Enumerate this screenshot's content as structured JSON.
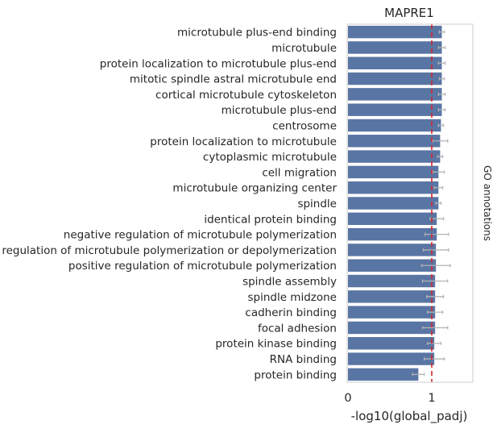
{
  "chart_data": {
    "type": "bar",
    "orientation": "horizontal",
    "title": "MAPRE1",
    "xlabel": "-log10(global_padj)",
    "ylabel": "",
    "right_label": "GO annotations",
    "xlim": [
      0,
      1.5
    ],
    "xticks": [
      0,
      1
    ],
    "reference_line": 1,
    "grid": false,
    "categories": [
      "microtubule plus-end binding",
      "microtubule",
      "protein localization to microtubule plus-end",
      "mitotic spindle astral microtubule end",
      "cortical microtubule cytoskeleton",
      "microtubule plus-end",
      "centrosome",
      "protein localization to microtubule",
      "cytoplasmic microtubule",
      "cell migration",
      "microtubule organizing center",
      "spindle",
      "identical protein binding",
      "negative regulation of microtubule polymerization",
      "regulation of microtubule polymerization or depolymerization",
      "positive regulation of microtubule polymerization",
      "spindle assembly",
      "spindle midzone",
      "cadherin binding",
      "focal adhesion",
      "protein kinase binding",
      "RNA binding",
      "protein binding"
    ],
    "values": [
      1.12,
      1.12,
      1.12,
      1.12,
      1.12,
      1.12,
      1.11,
      1.1,
      1.1,
      1.08,
      1.08,
      1.08,
      1.06,
      1.06,
      1.05,
      1.05,
      1.04,
      1.04,
      1.04,
      1.04,
      1.03,
      1.03,
      0.84
    ],
    "errors": [
      0.03,
      0.04,
      0.04,
      0.03,
      0.04,
      0.04,
      0.03,
      0.09,
      0.03,
      0.07,
      0.05,
      0.03,
      0.08,
      0.14,
      0.15,
      0.17,
      0.15,
      0.1,
      0.09,
      0.15,
      0.08,
      0.12,
      0.07
    ],
    "colors": {
      "bar": "#5975a4",
      "error": "#b3b3b3",
      "reference": "#d62728",
      "frame": "#cccccc"
    }
  }
}
